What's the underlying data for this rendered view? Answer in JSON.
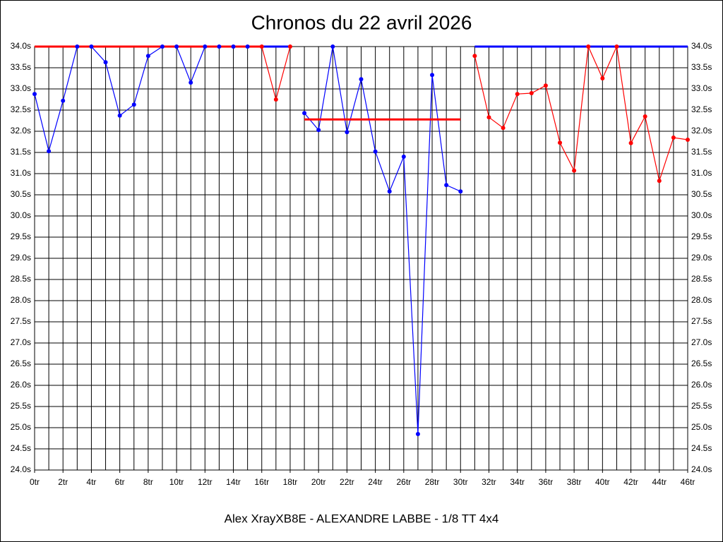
{
  "chart_data": {
    "type": "line",
    "title": "Chronos du 22 avril 2026",
    "footer": "Alex XrayXB8E - ALEXANDRE LABBE - 1/8 TT 4x4",
    "xlim": [
      0,
      46
    ],
    "ylim": [
      24.0,
      34.0
    ],
    "grid": true,
    "xticks": [
      {
        "value": 0,
        "label": "0tr"
      },
      {
        "value": 2,
        "label": "2tr"
      },
      {
        "value": 4,
        "label": "4tr"
      },
      {
        "value": 6,
        "label": "6tr"
      },
      {
        "value": 8,
        "label": "8tr"
      },
      {
        "value": 10,
        "label": "10tr"
      },
      {
        "value": 12,
        "label": "12tr"
      },
      {
        "value": 14,
        "label": "14tr"
      },
      {
        "value": 16,
        "label": "16tr"
      },
      {
        "value": 18,
        "label": "18tr"
      },
      {
        "value": 20,
        "label": "20tr"
      },
      {
        "value": 22,
        "label": "22tr"
      },
      {
        "value": 24,
        "label": "24tr"
      },
      {
        "value": 26,
        "label": "26tr"
      },
      {
        "value": 28,
        "label": "28tr"
      },
      {
        "value": 30,
        "label": "30tr"
      },
      {
        "value": 32,
        "label": "32tr"
      },
      {
        "value": 34,
        "label": "34tr"
      },
      {
        "value": 36,
        "label": "36tr"
      },
      {
        "value": 38,
        "label": "38tr"
      },
      {
        "value": 40,
        "label": "40tr"
      },
      {
        "value": 42,
        "label": "42tr"
      },
      {
        "value": 44,
        "label": "44tr"
      },
      {
        "value": 46,
        "label": "46tr"
      }
    ],
    "yticks": [
      {
        "value": 24.0,
        "label": "24.0s"
      },
      {
        "value": 24.5,
        "label": "24.5s"
      },
      {
        "value": 25.0,
        "label": "25.0s"
      },
      {
        "value": 25.5,
        "label": "25.5s"
      },
      {
        "value": 26.0,
        "label": "26.0s"
      },
      {
        "value": 26.5,
        "label": "26.5s"
      },
      {
        "value": 27.0,
        "label": "27.0s"
      },
      {
        "value": 27.5,
        "label": "27.5s"
      },
      {
        "value": 28.0,
        "label": "28.0s"
      },
      {
        "value": 28.5,
        "label": "28.5s"
      },
      {
        "value": 29.0,
        "label": "29.0s"
      },
      {
        "value": 29.5,
        "label": "29.5s"
      },
      {
        "value": 30.0,
        "label": "30.0s"
      },
      {
        "value": 30.5,
        "label": "30.5s"
      },
      {
        "value": 31.0,
        "label": "31.0s"
      },
      {
        "value": 31.5,
        "label": "31.5s"
      },
      {
        "value": 32.0,
        "label": "32.0s"
      },
      {
        "value": 32.5,
        "label": "32.5s"
      },
      {
        "value": 33.0,
        "label": "33.0s"
      },
      {
        "value": 33.5,
        "label": "33.5s"
      },
      {
        "value": 34.0,
        "label": "34.0s"
      }
    ],
    "series": [
      {
        "color": "#0000ff",
        "x": [
          0,
          1,
          2,
          3,
          4,
          5,
          6,
          7,
          8,
          9,
          10,
          11,
          12,
          13,
          14,
          15
        ],
        "values": [
          32.88,
          31.53,
          32.72,
          34.0,
          34.0,
          33.63,
          32.37,
          32.63,
          33.78,
          34.0,
          34.0,
          33.15,
          34.0,
          34.0,
          34.0,
          34.0
        ]
      },
      {
        "color": "#ff0000",
        "x": [
          16,
          17,
          18
        ],
        "values": [
          34.0,
          32.75,
          34.0
        ]
      },
      {
        "color": "#0000ff",
        "x": [
          19,
          20,
          21,
          22,
          23,
          24,
          25,
          26,
          27,
          28,
          29,
          30
        ],
        "values": [
          32.43,
          32.03,
          34.0,
          31.98,
          33.23,
          31.52,
          30.58,
          31.4,
          24.85,
          33.33,
          30.73,
          30.58
        ]
      },
      {
        "color": "#ff0000",
        "x": [
          31,
          32,
          33,
          34,
          35,
          36,
          37,
          38,
          39,
          40,
          41,
          42,
          43,
          44,
          45,
          46
        ],
        "values": [
          33.78,
          32.33,
          32.08,
          32.88,
          32.9,
          33.08,
          31.73,
          31.07,
          34.0,
          33.25,
          34.0,
          31.72,
          32.35,
          30.83,
          31.85,
          31.8
        ]
      }
    ],
    "reference_lines": [
      {
        "color": "#ff0000",
        "x": [
          0,
          16
        ],
        "value": 34.0
      },
      {
        "color": "#0000ff",
        "x": [
          16,
          18
        ],
        "value": 34.0
      },
      {
        "color": "#ff0000",
        "x": [
          19,
          30
        ],
        "value": 32.28
      },
      {
        "color": "#0000ff",
        "x": [
          31,
          46
        ],
        "value": 34.0
      }
    ]
  }
}
